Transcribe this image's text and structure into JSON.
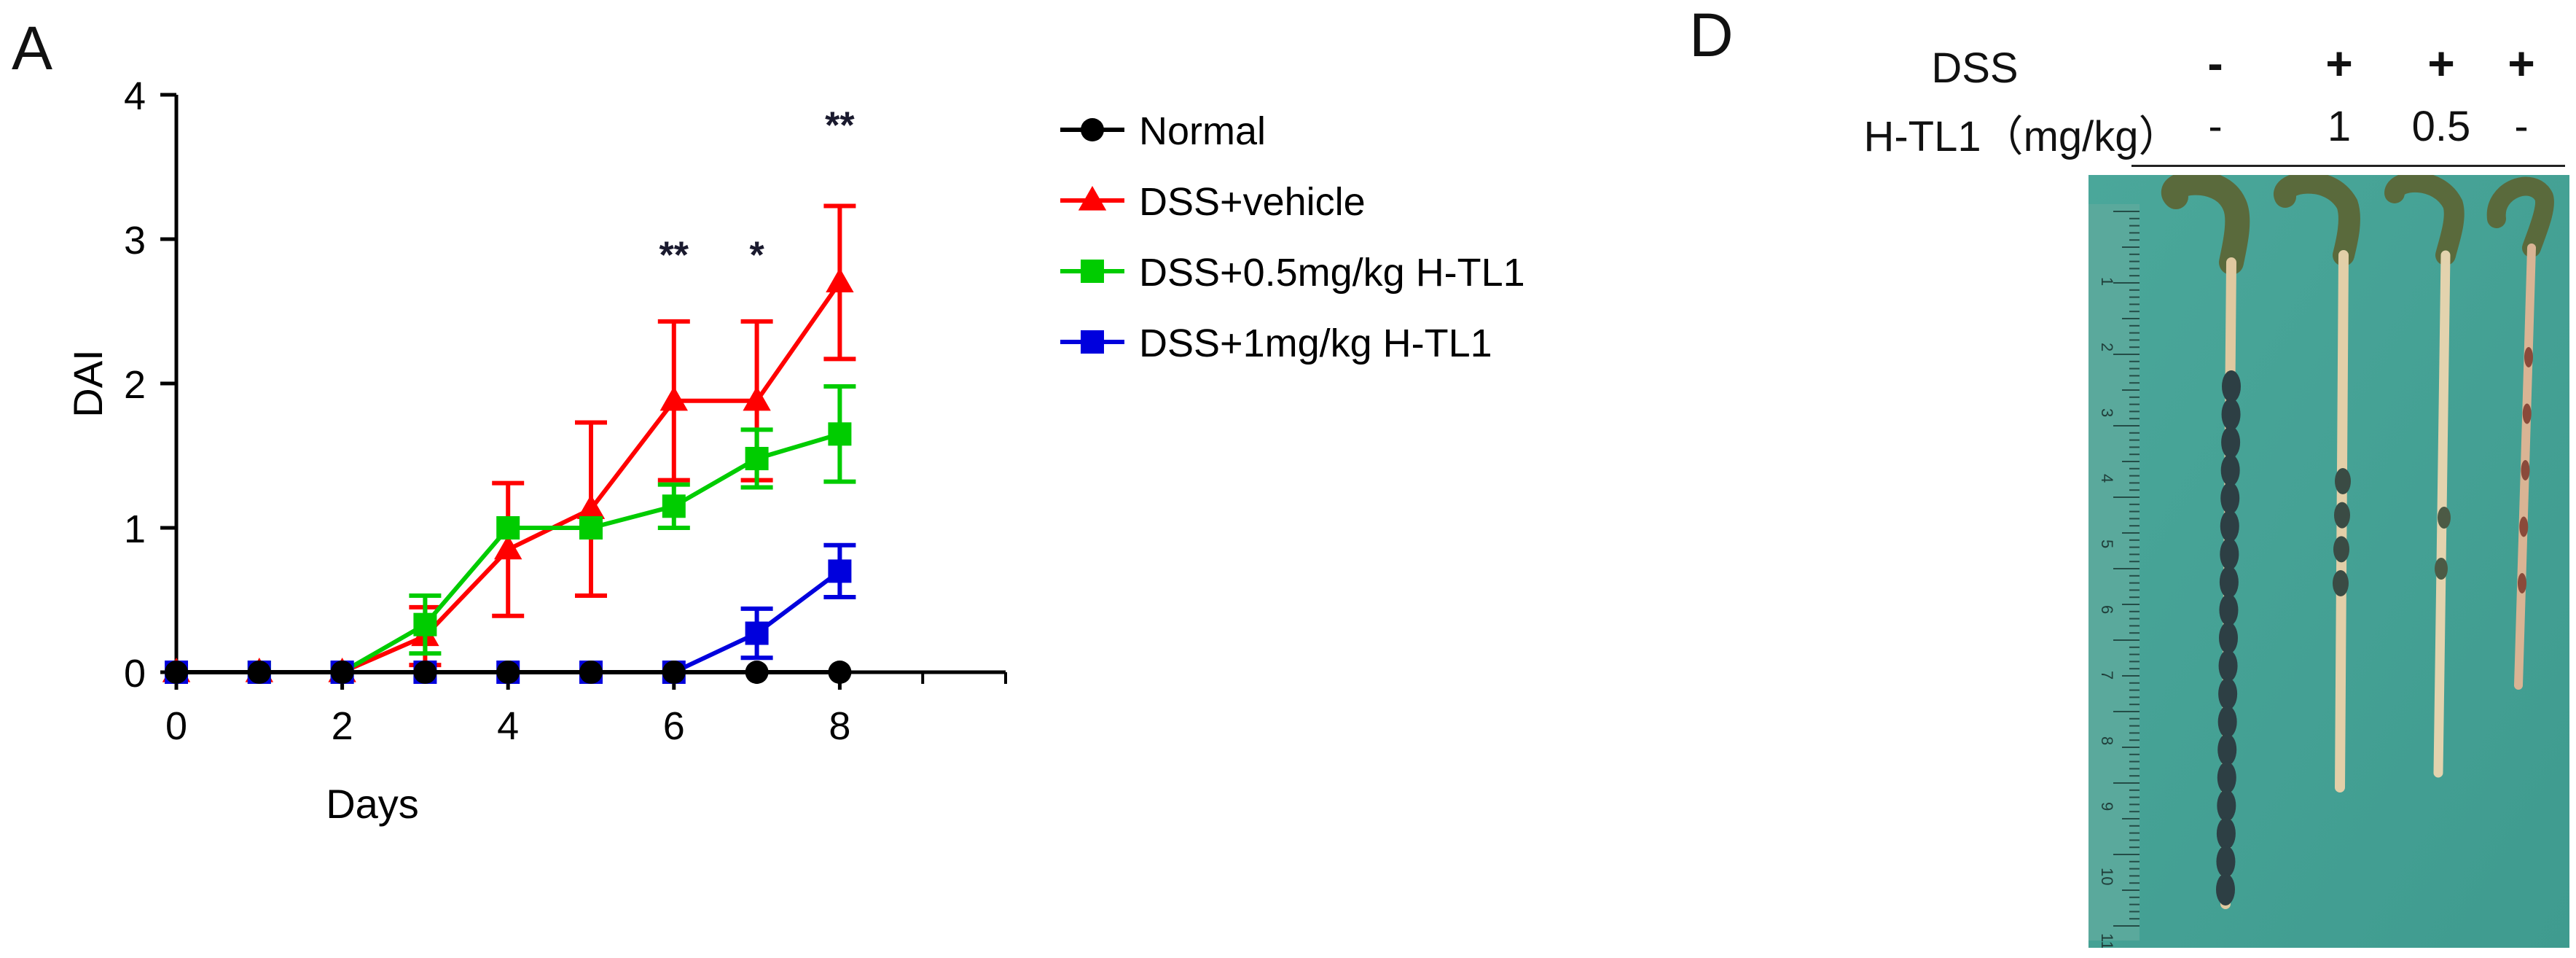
{
  "panel_a": {
    "letter": "A"
  },
  "panel_d": {
    "letter": "D",
    "row_labels": [
      "DSS",
      "H-TL1（mg/kg）"
    ],
    "dss_row": [
      "-",
      "+",
      "+",
      "+"
    ],
    "dose_row": [
      "-",
      "1",
      "0.5",
      "-"
    ],
    "photo_description": "Colon tissue photograph next to ruler"
  },
  "chart_data": {
    "type": "line",
    "xlabel": "Days",
    "ylabel": "DAI",
    "xlim": [
      0,
      10
    ],
    "ylim": [
      0,
      4
    ],
    "x_ticks": [
      0,
      2,
      4,
      6,
      8
    ],
    "y_ticks": [
      0,
      1,
      2,
      3,
      4
    ],
    "series": [
      {
        "name": "Normal",
        "color": "#000000",
        "marker": "circle",
        "x": [
          0,
          1,
          2,
          3,
          4,
          5,
          6,
          7,
          8
        ],
        "values": [
          0,
          0,
          0,
          0,
          0,
          0,
          0,
          0,
          0
        ],
        "errors": [
          0,
          0,
          0,
          0,
          0,
          0,
          0,
          0,
          0
        ]
      },
      {
        "name": "DSS+vehicle",
        "color": "#ff0000",
        "marker": "triangle",
        "x": [
          0,
          1,
          2,
          3,
          4,
          5,
          6,
          7,
          8
        ],
        "values": [
          0,
          0,
          0,
          0.25,
          0.85,
          1.13,
          1.88,
          1.88,
          2.7
        ],
        "errors": [
          0,
          0,
          0,
          0.2,
          0.46,
          0.6,
          0.55,
          0.55,
          0.53
        ]
      },
      {
        "name": "DSS+0.5mg/kg H-TL1",
        "color": "#00cc00",
        "marker": "square",
        "x": [
          0,
          1,
          2,
          3,
          4,
          5,
          6,
          7,
          8
        ],
        "values": [
          0,
          0,
          0,
          0.33,
          1.0,
          1.0,
          1.15,
          1.48,
          1.65
        ],
        "errors": [
          0,
          0,
          0,
          0.2,
          0.0,
          0.0,
          0.15,
          0.2,
          0.33
        ]
      },
      {
        "name": "DSS+1mg/kg H-TL1",
        "color": "#0000dd",
        "marker": "square",
        "x": [
          0,
          1,
          2,
          3,
          4,
          5,
          6,
          7,
          8
        ],
        "values": [
          0,
          0,
          0,
          0,
          0,
          0,
          0,
          0.27,
          0.7
        ],
        "errors": [
          0,
          0,
          0,
          0,
          0,
          0,
          0,
          0.17,
          0.18
        ]
      }
    ],
    "annotations": [
      {
        "x": 6,
        "y": 2.8,
        "text": "**"
      },
      {
        "x": 7,
        "y": 2.8,
        "text": "*"
      },
      {
        "x": 8,
        "y": 3.7,
        "text": "**"
      }
    ]
  }
}
